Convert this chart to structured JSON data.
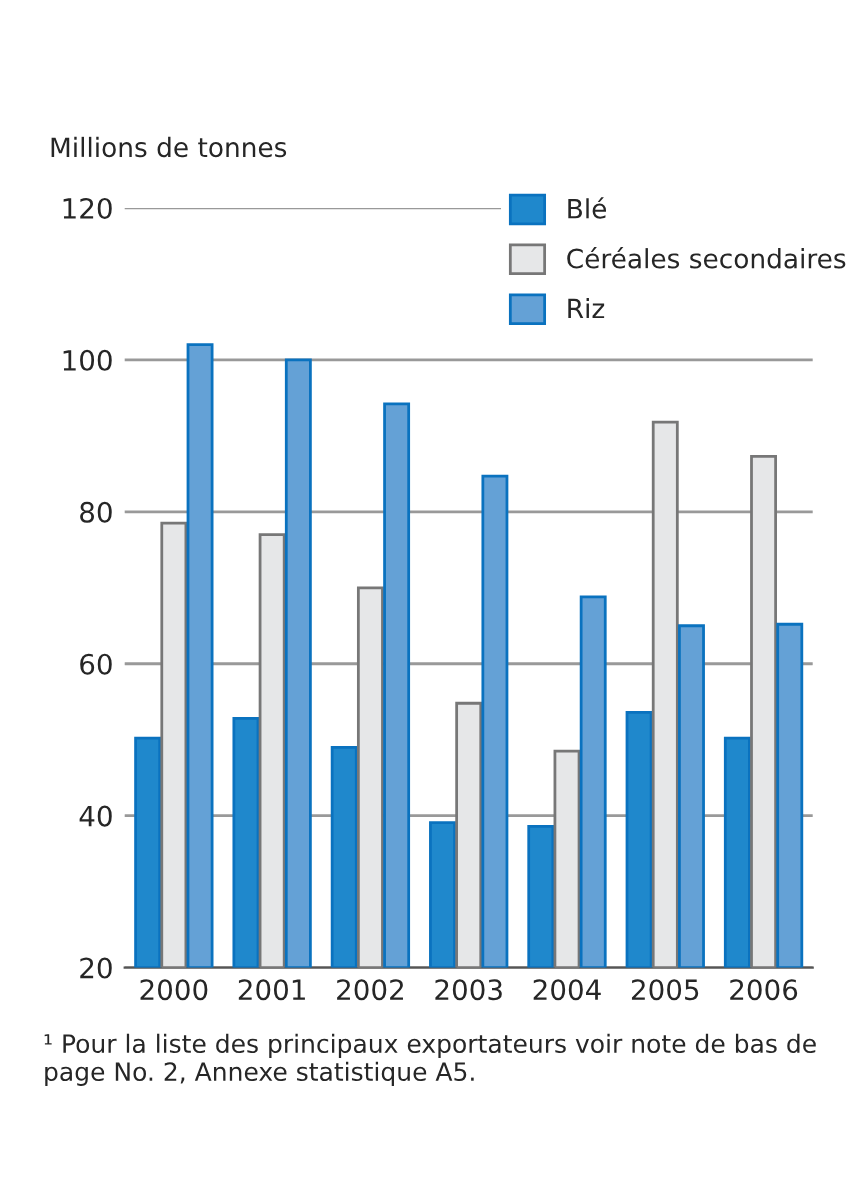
{
  "chart_data": {
    "type": "bar",
    "ylabel": "Millions de tonnes",
    "categories": [
      "2000",
      "2001",
      "2002",
      "2003",
      "2004",
      "2005",
      "2006"
    ],
    "series": [
      {
        "name": "Blé",
        "color": "#1f88cc",
        "values": [
          50.2,
          52.8,
          49,
          39.1,
          38.6,
          53.6,
          50.2
        ]
      },
      {
        "name": "Céréales secondaires",
        "color": "#e6e7e8",
        "values": [
          78.5,
          77,
          70,
          54.8,
          48.5,
          91.8,
          87.3
        ]
      },
      {
        "name": "Riz",
        "color": "#64a1d6",
        "values": [
          102,
          100,
          94.2,
          84.7,
          68.8,
          65,
          65.2
        ]
      }
    ],
    "ylim": [
      20,
      120
    ],
    "yticks": [
      20,
      40,
      60,
      80,
      100,
      120
    ],
    "grid": "y",
    "legend": "top right",
    "annotations": [
      "¹ Pour la liste des principaux exportateurs voir note de bas de page No. 2, Annexe statistique A5."
    ]
  }
}
